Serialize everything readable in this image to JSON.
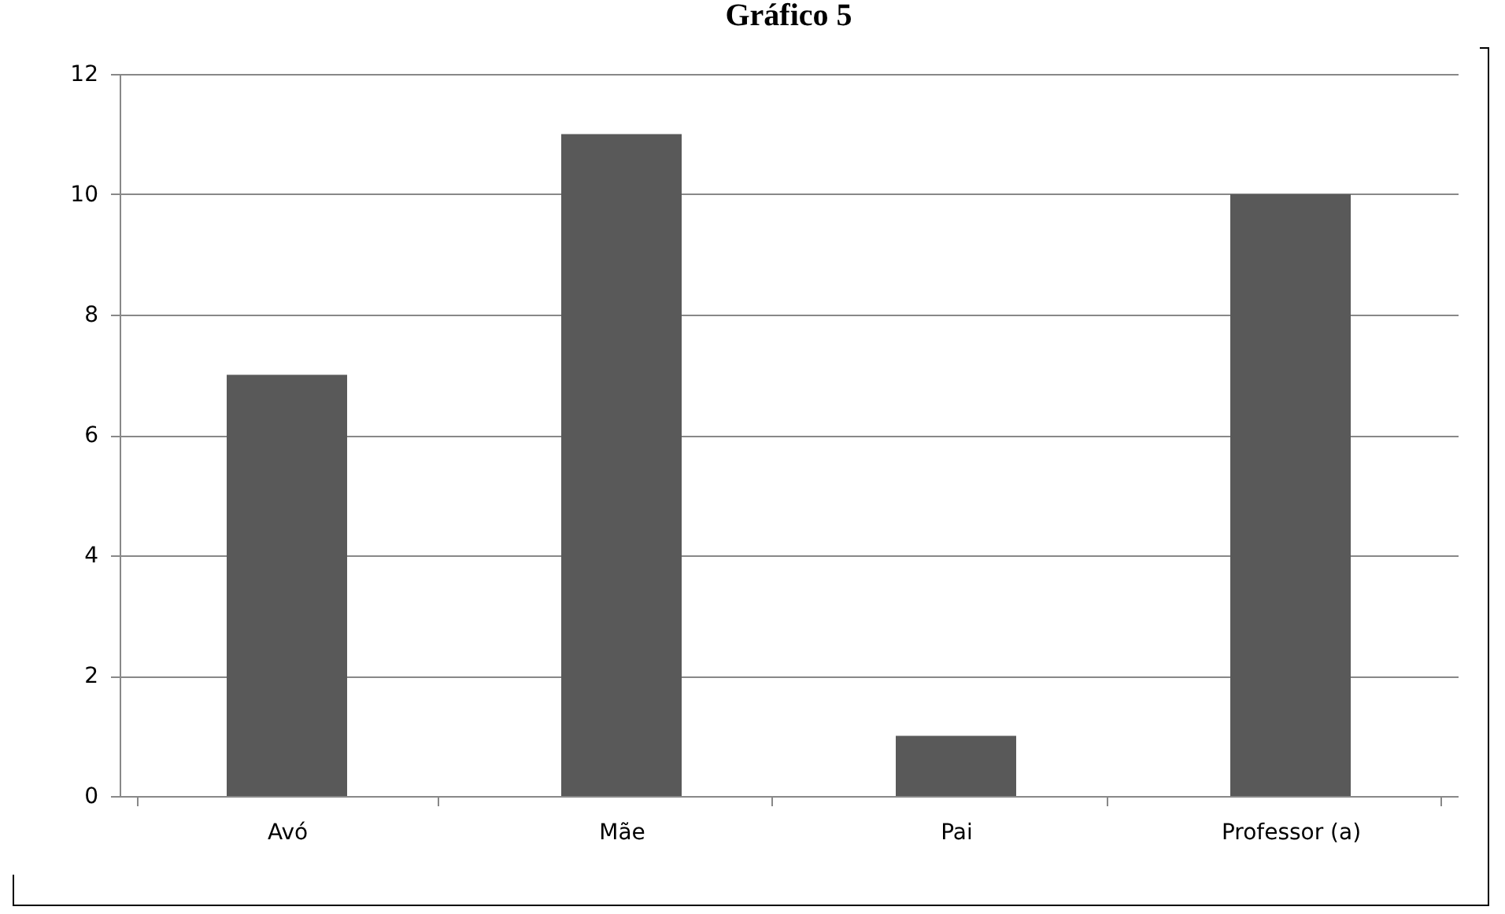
{
  "chart_data": {
    "type": "bar",
    "title": "Gráfico 5",
    "categories": [
      "Avó",
      "Mãe",
      "Pai",
      "Professor (a)"
    ],
    "values": [
      7,
      11,
      1,
      10
    ],
    "color": "#595959",
    "ylim": [
      0,
      12
    ],
    "yticks": [
      0,
      2,
      4,
      6,
      8,
      10,
      12
    ],
    "grid": "y"
  }
}
